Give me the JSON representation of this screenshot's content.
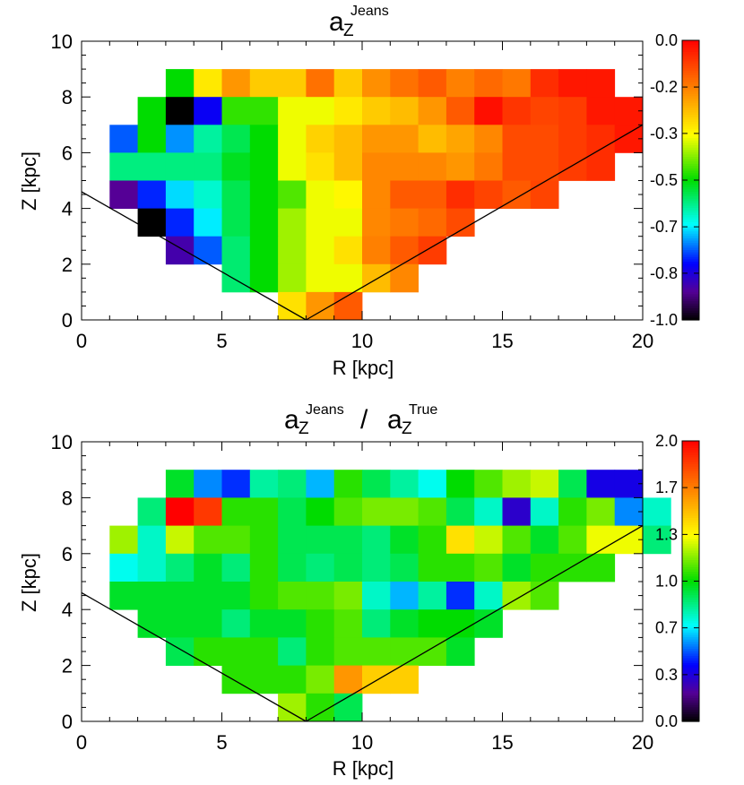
{
  "chart_data": [
    {
      "type": "heatmap",
      "title": {
        "base": "a",
        "sub": "Z",
        "sup": "Jeans"
      },
      "xlabel": "R  [kpc]",
      "ylabel": "Z  [kpc]",
      "xlim": [
        0,
        20
      ],
      "ylim": [
        0,
        10
      ],
      "xticks": [
        0,
        5,
        10,
        15,
        20
      ],
      "yticks": [
        0,
        2,
        4,
        6,
        8,
        10
      ],
      "bin_width": 1,
      "bin_height": 1,
      "boundary_lines": [
        {
          "from": [
            0,
            4.6
          ],
          "to": [
            8,
            0
          ]
        },
        {
          "from": [
            8,
            0
          ],
          "to": [
            20,
            7
          ]
        }
      ],
      "colorbar": {
        "min": -1.0,
        "max": 0.0,
        "tick_labels": [
          "0.0",
          "-0.2",
          "-0.3",
          "-0.5",
          "-0.7",
          "-0.8",
          "-1.0"
        ],
        "tick_positions": [
          0.0,
          -0.167,
          -0.333,
          -0.5,
          -0.667,
          -0.833,
          -1.0
        ],
        "colormap": "rainbow"
      },
      "rows": [
        {
          "z": 8.5,
          "x_start": 3,
          "values": [
            -0.5,
            -0.31,
            -0.2,
            -0.27,
            -0.27,
            -0.15,
            -0.27,
            -0.19,
            -0.15,
            -0.12,
            -0.17,
            -0.14,
            -0.16,
            -0.06,
            -0.03,
            -0.03
          ]
        },
        {
          "z": 7.5,
          "x_start": 2,
          "values": [
            -0.5,
            -1.0,
            -0.81,
            -0.47,
            -0.47,
            -0.35,
            -0.35,
            -0.31,
            -0.27,
            -0.25,
            -0.2,
            -0.12,
            -0.02,
            -0.07,
            -0.09,
            -0.08,
            -0.03,
            -0.03
          ]
        },
        {
          "z": 6.5,
          "x_start": 1,
          "values": [
            -0.75,
            -0.5,
            -0.72,
            -0.6,
            -0.55,
            -0.5,
            -0.35,
            -0.28,
            -0.25,
            -0.2,
            -0.2,
            -0.25,
            -0.22,
            -0.18,
            -0.1,
            -0.1,
            -0.08,
            -0.06,
            -0.03
          ]
        },
        {
          "z": 5.5,
          "x_start": 1,
          "values": [
            -0.58,
            -0.58,
            -0.58,
            -0.58,
            -0.52,
            -0.5,
            -0.35,
            -0.3,
            -0.25,
            -0.18,
            -0.18,
            -0.18,
            -0.2,
            -0.16,
            -0.1,
            -0.1,
            -0.08,
            -0.06
          ]
        },
        {
          "z": 4.5,
          "x_start": 1,
          "values": [
            -0.9,
            -0.78,
            -0.68,
            -0.63,
            -0.55,
            -0.5,
            -0.45,
            -0.35,
            -0.33,
            -0.18,
            -0.12,
            -0.12,
            -0.06,
            -0.09,
            -0.12,
            -0.09
          ]
        },
        {
          "z": 3.5,
          "x_start": 2,
          "values": [
            -1.0,
            -0.78,
            -0.67,
            -0.55,
            -0.5,
            -0.4,
            -0.35,
            -0.35,
            -0.18,
            -0.16,
            -0.14,
            -0.1
          ]
        },
        {
          "z": 2.5,
          "x_start": 3,
          "values": [
            -0.88,
            -0.75,
            -0.57,
            -0.5,
            -0.4,
            -0.35,
            -0.3,
            -0.17,
            -0.12,
            -0.08
          ]
        },
        {
          "z": 1.5,
          "x_start": 5,
          "values": [
            -0.57,
            -0.5,
            -0.4,
            -0.35,
            -0.35,
            -0.25,
            -0.18
          ]
        },
        {
          "z": 0.5,
          "x_start": 7,
          "values": [
            -0.3,
            -0.2,
            -0.12
          ]
        }
      ]
    },
    {
      "type": "heatmap",
      "title": {
        "left_base": "a",
        "left_sub": "Z",
        "left_sup": "Jeans",
        "divider": "/",
        "right_base": "a",
        "right_sub": "Z",
        "right_sup": "True"
      },
      "xlabel": "R  [kpc]",
      "ylabel": "Z  [kpc]",
      "xlim": [
        0,
        20
      ],
      "ylim": [
        0,
        10
      ],
      "xticks": [
        0,
        5,
        10,
        15,
        20
      ],
      "yticks": [
        0,
        2,
        4,
        6,
        8,
        10
      ],
      "bin_width": 1,
      "bin_height": 1,
      "boundary_lines": [
        {
          "from": [
            0,
            4.6
          ],
          "to": [
            8,
            0
          ]
        },
        {
          "from": [
            8,
            0
          ],
          "to": [
            20,
            7
          ]
        }
      ],
      "colorbar": {
        "min": 0.0,
        "max": 2.0,
        "tick_labels": [
          "2.0",
          "1.7",
          "1.3",
          "1.0",
          "0.7",
          "0.3",
          "0.0"
        ],
        "tick_positions": [
          2.0,
          1.667,
          1.333,
          1.0,
          0.667,
          0.333,
          0.0
        ],
        "colormap": "rainbow"
      },
      "rows": [
        {
          "z": 8.5,
          "x_start": 3,
          "values": [
            0.95,
            0.55,
            0.45,
            0.8,
            0.85,
            0.6,
            1.05,
            0.9,
            0.8,
            0.7,
            1.0,
            1.1,
            1.2,
            1.25,
            0.9,
            0.35,
            0.35
          ]
        },
        {
          "z": 7.5,
          "x_start": 2,
          "values": [
            0.85,
            2.0,
            1.85,
            1.05,
            1.05,
            0.9,
            1.0,
            1.1,
            1.15,
            1.15,
            1.1,
            0.9,
            0.75,
            0.3,
            0.75,
            1.05,
            1.15,
            0.55,
            0.75
          ]
        },
        {
          "z": 6.5,
          "x_start": 1,
          "values": [
            1.2,
            0.75,
            1.25,
            1.1,
            1.1,
            1.05,
            0.9,
            0.9,
            0.9,
            0.85,
            0.95,
            1.05,
            1.4,
            1.25,
            1.1,
            0.95,
            1.1,
            1.3,
            1.3,
            0.85
          ]
        },
        {
          "z": 5.5,
          "x_start": 1,
          "values": [
            0.7,
            0.75,
            0.85,
            0.95,
            0.85,
            1.05,
            0.9,
            0.85,
            0.9,
            0.85,
            0.9,
            1.05,
            1.05,
            1.1,
            0.95,
            1.05,
            1.05,
            1.05
          ]
        },
        {
          "z": 4.5,
          "x_start": 1,
          "values": [
            0.95,
            0.95,
            0.95,
            0.95,
            0.95,
            1.05,
            1.1,
            1.1,
            1.15,
            0.75,
            0.6,
            0.8,
            0.45,
            0.75,
            1.2,
            1.1
          ]
        },
        {
          "z": 3.5,
          "x_start": 2,
          "values": [
            0.95,
            0.95,
            0.95,
            0.85,
            0.95,
            0.95,
            1.05,
            1.1,
            0.85,
            0.95,
            1.0,
            1.0,
            0.95
          ]
        },
        {
          "z": 2.5,
          "x_start": 3,
          "values": [
            0.9,
            1.05,
            1.05,
            1.05,
            0.85,
            1.05,
            1.1,
            1.1,
            1.1,
            1.1,
            0.95
          ]
        },
        {
          "z": 1.5,
          "x_start": 5,
          "values": [
            1.05,
            1.05,
            1.05,
            1.15,
            1.6,
            1.45,
            1.45
          ]
        },
        {
          "z": 0.5,
          "x_start": 7,
          "values": [
            1.2,
            1.05,
            0.9
          ]
        }
      ]
    }
  ]
}
